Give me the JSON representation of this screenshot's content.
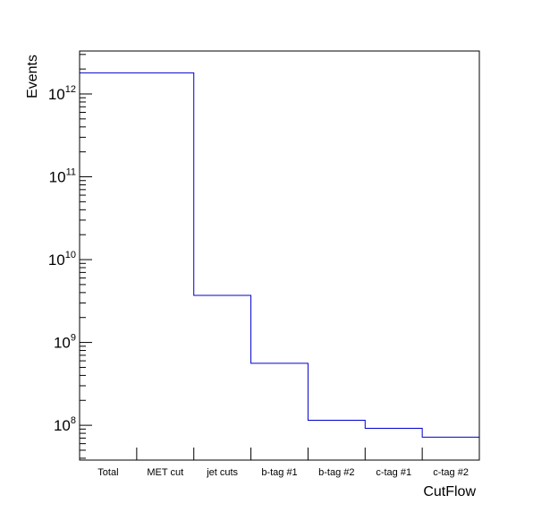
{
  "chart_data": {
    "type": "bar",
    "style": "step-histogram",
    "categories": [
      "Total",
      "MET cut",
      "jet cuts",
      "b-tag #1",
      "b-tag #2",
      "c-tag #1",
      "c-tag #2"
    ],
    "values": [
      1800000000000.0,
      1800000000000.0,
      3700000000.0,
      560000000.0,
      115000000.0,
      92000000.0,
      72000000.0
    ],
    "xlabel": "CutFlow",
    "ylabel": "Events",
    "yscale": "log",
    "ylim": [
      38000000.0,
      3300000000000.0
    ],
    "yticks": [
      {
        "base": "10",
        "exp": "8",
        "value": 100000000.0
      },
      {
        "base": "10",
        "exp": "9",
        "value": 1000000000.0
      },
      {
        "base": "10",
        "exp": "10",
        "value": 10000000000.0
      },
      {
        "base": "10",
        "exp": "11",
        "value": 100000000000.0
      },
      {
        "base": "10",
        "exp": "12",
        "value": 1000000000000.0
      }
    ],
    "grid": false,
    "legend": "none",
    "line_color": "#0000cc"
  }
}
